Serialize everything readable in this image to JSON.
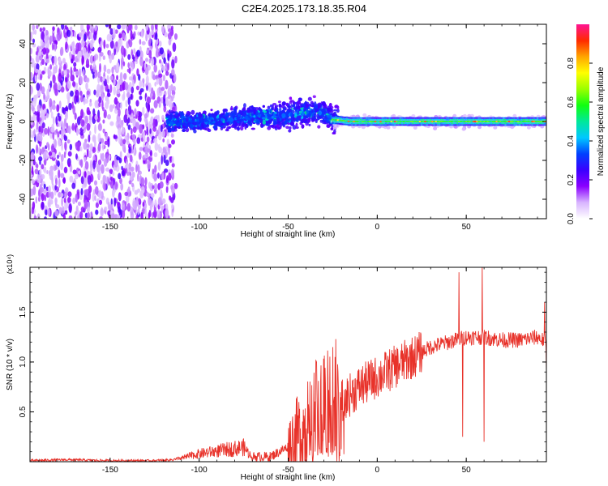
{
  "figure": {
    "title": "C2E4.2025.173.18.35.R04"
  },
  "colors": {
    "snr_line": "#e8322a",
    "colorbar": [
      "#ffffff",
      "#d8b4ff",
      "#8a00ff",
      "#3a00ff",
      "#0040ff",
      "#00c8ff",
      "#00e89a",
      "#10ff10",
      "#9bff00",
      "#ffff00",
      "#ffa500",
      "#ff2a00",
      "#ff1493"
    ]
  },
  "chart_data": [
    {
      "type": "heatmap",
      "title": "C2E4.2025.173.18.35.R04",
      "xlabel": "Height of straight line (km)",
      "ylabel": "Frequency (Hz)",
      "xlim": [
        -195,
        95
      ],
      "ylim": [
        -50,
        50
      ],
      "xticks": [
        -150,
        -100,
        -50,
        0,
        50
      ],
      "yticks": [
        -40,
        -20,
        0,
        20,
        40
      ],
      "colorbar": {
        "label": "Normalized spectral amplitude",
        "ticks": [
          "0.0",
          "0.2",
          "0.4",
          "0.6",
          "0.8"
        ],
        "range": [
          0,
          1
        ]
      },
      "regions": [
        {
          "x": [
            -195,
            -115
          ],
          "freq_spread": 50,
          "amplitude": 0.15,
          "description_level": "diffuse"
        },
        {
          "x": [
            -115,
            -25
          ],
          "freq_spread": 8,
          "amplitude": 0.35
        },
        {
          "x": [
            -25,
            95
          ],
          "freq_spread": 3,
          "amplitude": 0.7
        }
      ],
      "centerline_freq": [
        [
          -195,
          2
        ],
        [
          -150,
          1
        ],
        [
          -100,
          0
        ],
        [
          -75,
          2
        ],
        [
          -50,
          3
        ],
        [
          -40,
          5
        ],
        [
          -30,
          4
        ],
        [
          -25,
          1
        ],
        [
          -15,
          0
        ],
        [
          0,
          0
        ],
        [
          50,
          0
        ],
        [
          95,
          0
        ]
      ]
    },
    {
      "type": "line",
      "xlabel": "Height of straight line (km)",
      "ylabel": "SNR (10 * v/v)",
      "y_multiplier": "(x10⁴)",
      "xlim": [
        -195,
        95
      ],
      "ylim": [
        0,
        1.95
      ],
      "xticks": [
        -150,
        -100,
        -50,
        0,
        50
      ],
      "yticks": [
        "0.5",
        "1.0",
        "1.5"
      ],
      "series": [
        {
          "envelope": [
            [
              -195,
              0.01
            ],
            [
              -175,
              0.02
            ],
            [
              -150,
              0.01
            ],
            [
              -125,
              0.01
            ],
            [
              -115,
              0.02
            ],
            [
              -100,
              0.1
            ],
            [
              -85,
              0.15
            ],
            [
              -75,
              0.18
            ],
            [
              -70,
              0.05
            ],
            [
              -60,
              0.05
            ],
            [
              -50,
              0.15
            ],
            [
              -40,
              0.35
            ],
            [
              -30,
              0.6
            ],
            [
              -25,
              0.7
            ],
            [
              -20,
              0.6
            ],
            [
              -10,
              0.75
            ],
            [
              0,
              0.85
            ],
            [
              10,
              0.95
            ],
            [
              20,
              1.05
            ],
            [
              30,
              1.15
            ],
            [
              40,
              1.2
            ],
            [
              50,
              1.25
            ],
            [
              60,
              1.25
            ],
            [
              70,
              1.22
            ],
            [
              80,
              1.22
            ],
            [
              90,
              1.25
            ],
            [
              95,
              1.2
            ]
          ],
          "spikes": [
            [
              -25,
              1.15
            ],
            [
              -22,
              0.9
            ],
            [
              46,
              1.9
            ],
            [
              48,
              0.25
            ],
            [
              59,
              1.97
            ],
            [
              60,
              0.2
            ],
            [
              94,
              1.6
            ],
            [
              95,
              0.9
            ]
          ]
        }
      ]
    }
  ]
}
